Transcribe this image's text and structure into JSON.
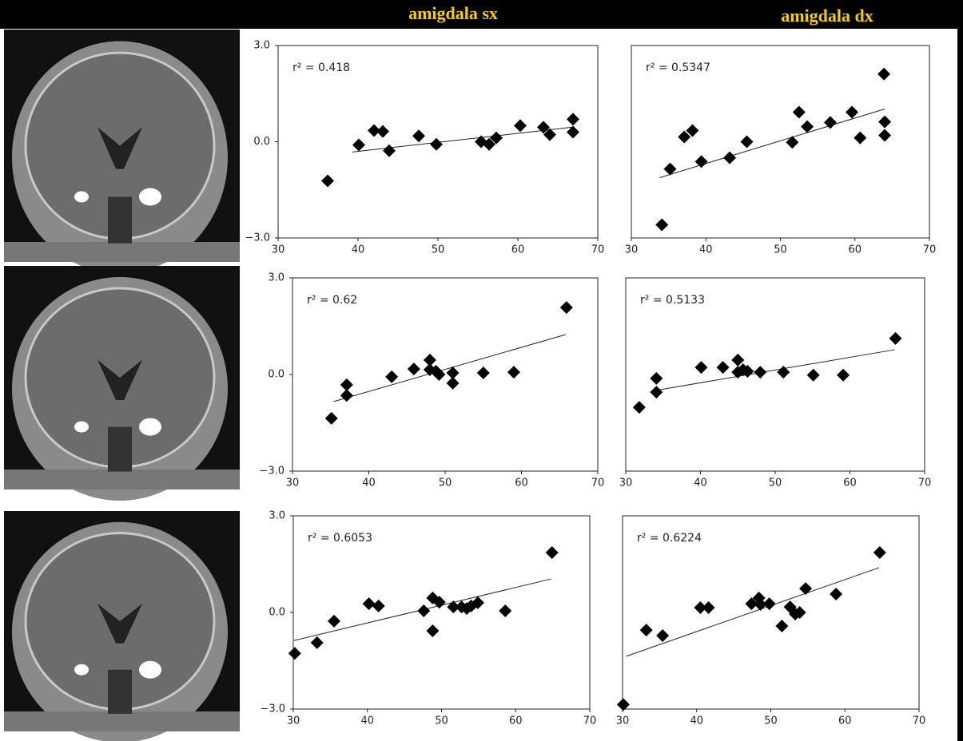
{
  "headers": [
    "amigdala sx",
    "amigdala dx"
  ],
  "chart_data": [
    {
      "type": "scatter",
      "annotation": "r² = 0.418",
      "x": [
        36.2,
        40.1,
        42.0,
        43.1,
        43.9,
        47.6,
        49.8,
        55.4,
        56.4,
        57.3,
        60.3,
        63.2,
        64.0,
        66.9,
        66.9
      ],
      "y": [
        -1.22,
        -0.1,
        0.35,
        0.32,
        -0.28,
        0.18,
        -0.08,
        0,
        -0.08,
        0.12,
        0.5,
        0.45,
        0.22,
        0.7,
        0.3
      ],
      "trendline": {
        "x": [
          39.3,
          66.7
        ],
        "y": [
          -0.32,
          0.45
        ]
      },
      "xlim": [
        30,
        70
      ],
      "ylim": [
        -3,
        3
      ],
      "xticks": [
        30,
        40,
        50,
        60,
        70
      ],
      "yticks": [
        {
          "value": 3,
          "label": "3.0"
        },
        {
          "value": 0,
          "label": "0.0"
        },
        {
          "value": -3,
          "label": "−3.0"
        }
      ],
      "color": "#000000"
    },
    {
      "type": "scatter",
      "annotation": "r² = 0.5347",
      "x": [
        34.1,
        35.2,
        37.1,
        38.2,
        39.4,
        43.2,
        45.5,
        51.6,
        52.5,
        53.6,
        56.7,
        59.6,
        60.7,
        63.9,
        64.0,
        64.0
      ],
      "y": [
        -2.59,
        -0.85,
        0.15,
        0.35,
        -0.62,
        -0.5,
        0,
        -0.02,
        0.92,
        0.47,
        0.6,
        0.92,
        0.12,
        2.11,
        0.62,
        0.2
      ],
      "trendline": {
        "x": [
          33.8,
          64.0
        ],
        "y": [
          -1.12,
          1.02
        ]
      },
      "xlim": [
        30,
        70
      ],
      "ylim": [
        -3,
        3
      ],
      "xticks": [
        30,
        40,
        50,
        60,
        70
      ],
      "yticks": [],
      "color": "#000000"
    },
    {
      "type": "scatter",
      "annotation": "r² = 0.62",
      "x": [
        35.1,
        37.1,
        37.1,
        43.0,
        45.9,
        48.0,
        48.0,
        48.8,
        49.2,
        51.0,
        51.0,
        55.0,
        59.0,
        65.9
      ],
      "y": [
        -1.36,
        -0.65,
        -0.32,
        -0.07,
        0.17,
        0.45,
        0.15,
        0.1,
        0,
        0.05,
        -0.27,
        0.05,
        0.07,
        2.08
      ],
      "trendline": {
        "x": [
          35.4,
          65.8
        ],
        "y": [
          -0.84,
          1.24
        ]
      },
      "xlim": [
        30,
        70
      ],
      "ylim": [
        -3,
        3
      ],
      "xticks": [
        30,
        40,
        50,
        60,
        70
      ],
      "yticks": [
        {
          "value": 3,
          "label": "3.0"
        },
        {
          "value": 0,
          "label": "0.0"
        },
        {
          "value": -3,
          "label": "−3.0"
        }
      ],
      "color": "#000000"
    },
    {
      "type": "scatter",
      "annotation": "r² = 0.5133",
      "x": [
        31.8,
        34.1,
        34.1,
        40.1,
        43.0,
        45.0,
        45.0,
        45.7,
        46.3,
        48.0,
        51.1,
        55.1,
        59.1,
        66.1
      ],
      "y": [
        -1.02,
        -0.12,
        -0.55,
        0.22,
        0.22,
        0.45,
        0.07,
        0.15,
        0.1,
        0.07,
        0.07,
        -0.02,
        -0.02,
        1.12
      ],
      "trendline": {
        "x": [
          34.6,
          66.0
        ],
        "y": [
          -0.47,
          0.77
        ]
      },
      "xlim": [
        30,
        70
      ],
      "ylim": [
        -3,
        3
      ],
      "xticks": [
        30,
        40,
        50,
        60,
        70
      ],
      "yticks": [],
      "color": "#000000"
    },
    {
      "type": "scatter",
      "annotation": "r² = 0.6053",
      "x": [
        30.2,
        33.2,
        35.5,
        40.2,
        41.5,
        47.6,
        48.8,
        48.8,
        49.7,
        51.6,
        52.7,
        53.4,
        54.0,
        54.9,
        58.6,
        64.9
      ],
      "y": [
        -1.27,
        -0.94,
        -0.27,
        0.27,
        0.2,
        0.05,
        -0.57,
        0.45,
        0.32,
        0.17,
        0.17,
        0.12,
        0.2,
        0.3,
        0.05,
        1.86
      ],
      "trendline": {
        "x": [
          30.1,
          64.8
        ],
        "y": [
          -0.87,
          1.04
        ]
      },
      "xlim": [
        30,
        70
      ],
      "ylim": [
        -3,
        3
      ],
      "xticks": [
        30,
        40,
        50,
        60,
        70
      ],
      "yticks": [
        {
          "value": 3,
          "label": "3.0"
        },
        {
          "value": 0,
          "label": "0.0"
        },
        {
          "value": -3,
          "label": "−3.0"
        }
      ],
      "color": "#000000"
    },
    {
      "type": "scatter",
      "annotation": "r² = 0.6224",
      "x": [
        30.1,
        33.2,
        35.4,
        40.5,
        41.6,
        47.4,
        48.4,
        48.6,
        49.8,
        52.6,
        53.3,
        53.9,
        51.5,
        54.7,
        58.8,
        64.7
      ],
      "y": [
        -2.86,
        -0.55,
        -0.72,
        0.15,
        0.15,
        0.27,
        0.45,
        0.25,
        0.27,
        0.17,
        -0.05,
        0,
        -0.42,
        0.74,
        0.57,
        1.86
      ],
      "trendline": {
        "x": [
          30.5,
          64.6
        ],
        "y": [
          -1.36,
          1.39
        ]
      },
      "xlim": [
        30,
        70
      ],
      "ylim": [
        -3,
        3
      ],
      "xticks": [
        30,
        40,
        50,
        60,
        70
      ],
      "yticks": [],
      "color": "#000000"
    }
  ]
}
